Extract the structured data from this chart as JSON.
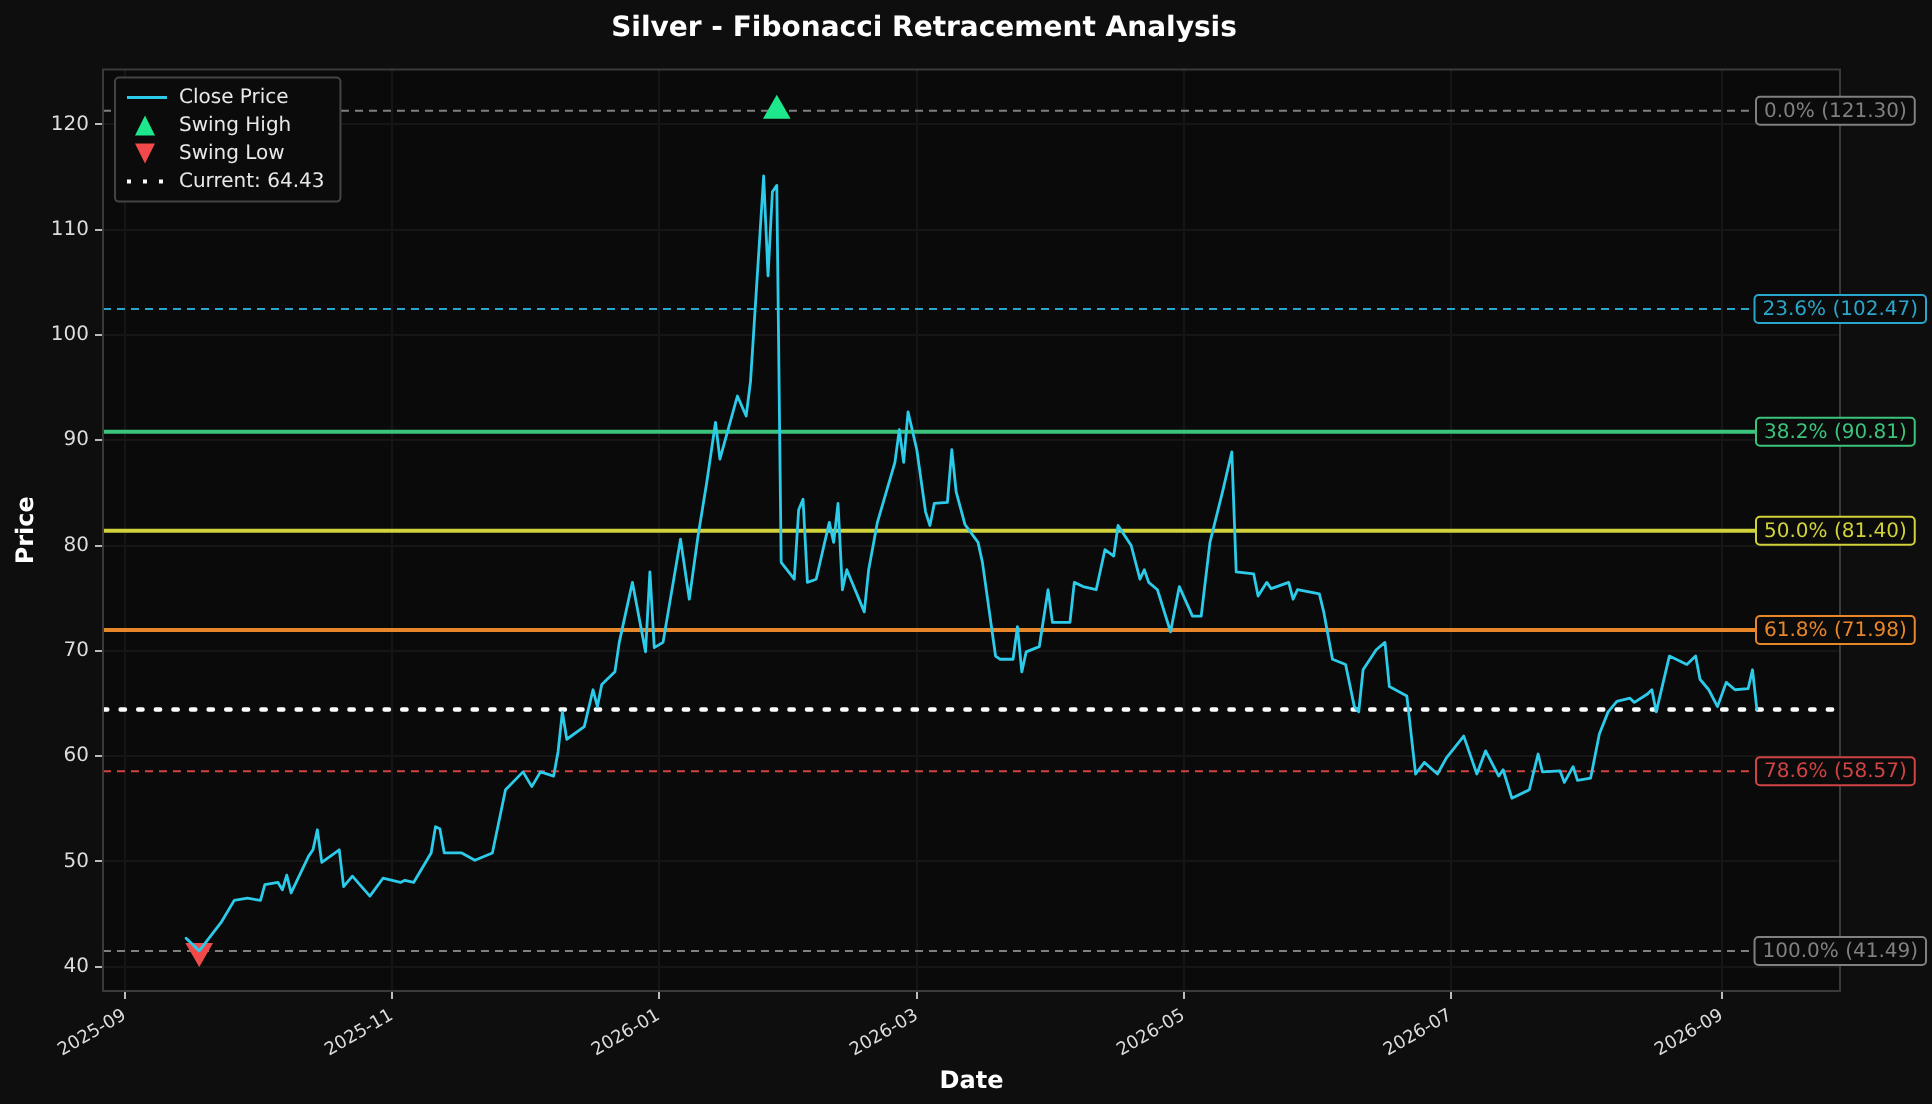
{
  "chart_data": {
    "type": "line",
    "title": "Silver - Fibonacci Retracement Analysis",
    "xlabel": "Date",
    "ylabel": "Price",
    "xlim": [
      "2025-08-27",
      "2026-09-28"
    ],
    "ylim": [
      37.7,
      125.2
    ],
    "xticks": [
      "2025-09",
      "2025-11",
      "2026-01",
      "2026-03",
      "2026-05",
      "2026-07",
      "2026-09"
    ],
    "yticks": [
      40,
      50,
      60,
      70,
      80,
      90,
      100,
      110,
      120
    ],
    "grid": true,
    "legend": "top left",
    "series": [
      {
        "name": "Close Price",
        "type": "line",
        "color": "#2ccbea",
        "line_style": "solid",
        "marker": "none",
        "x": [
          "2025-09-15",
          "2025-09-18",
          "2025-09-23",
          "2025-09-26",
          "2025-09-29",
          "2025-10-02",
          "2025-10-03",
          "2025-10-06",
          "2025-10-07",
          "2025-10-08",
          "2025-10-09",
          "2025-10-13",
          "2025-10-14",
          "2025-10-15",
          "2025-10-16",
          "2025-10-20",
          "2025-10-21",
          "2025-10-23",
          "2025-10-27",
          "2025-10-30",
          "2025-11-03",
          "2025-11-04",
          "2025-11-06",
          "2025-11-10",
          "2025-11-11",
          "2025-11-12",
          "2025-11-13",
          "2025-11-17",
          "2025-11-20",
          "2025-11-24",
          "2025-11-27",
          "2025-12-01",
          "2025-12-03",
          "2025-12-05",
          "2025-12-08",
          "2025-12-09",
          "2025-12-10",
          "2025-12-11",
          "2025-12-15",
          "2025-12-17",
          "2025-12-18",
          "2025-12-19",
          "2025-12-22",
          "2025-12-23",
          "2025-12-26",
          "2025-12-29",
          "2025-12-30",
          "2025-12-31",
          "2026-01-02",
          "2026-01-06",
          "2026-01-08",
          "2026-01-10",
          "2026-01-12",
          "2026-01-14",
          "2026-01-15",
          "2026-01-19",
          "2026-01-21",
          "2026-01-22",
          "2026-01-25",
          "2026-01-26",
          "2026-01-27",
          "2026-01-28",
          "2026-01-29",
          "2026-02-01",
          "2026-02-02",
          "2026-02-03",
          "2026-02-04",
          "2026-02-06",
          "2026-02-09",
          "2026-02-10",
          "2026-02-11",
          "2026-02-12",
          "2026-02-13",
          "2026-02-17",
          "2026-02-18",
          "2026-02-20",
          "2026-02-24",
          "2026-02-25",
          "2026-02-26",
          "2026-02-27",
          "2026-03-01",
          "2026-03-03",
          "2026-03-04",
          "2026-03-05",
          "2026-03-08",
          "2026-03-09",
          "2026-03-10",
          "2026-03-12",
          "2026-03-15",
          "2026-03-16",
          "2026-03-19",
          "2026-03-20",
          "2026-03-23",
          "2026-03-24",
          "2026-03-25",
          "2026-03-26",
          "2026-03-29",
          "2026-03-31",
          "2026-04-01",
          "2026-04-05",
          "2026-04-06",
          "2026-04-08",
          "2026-04-11",
          "2026-04-13",
          "2026-04-15",
          "2026-04-16",
          "2026-04-19",
          "2026-04-21",
          "2026-04-22",
          "2026-04-23",
          "2026-04-25",
          "2026-04-28",
          "2026-04-30",
          "2026-05-03",
          "2026-05-05",
          "2026-05-07",
          "2026-05-10",
          "2026-05-12",
          "2026-05-13",
          "2026-05-17",
          "2026-05-18",
          "2026-05-20",
          "2026-05-21",
          "2026-05-25",
          "2026-05-26",
          "2026-05-27",
          "2026-06-01",
          "2026-06-02",
          "2026-06-04",
          "2026-06-07",
          "2026-06-09",
          "2026-06-10",
          "2026-06-11",
          "2026-06-14",
          "2026-06-16",
          "2026-06-17",
          "2026-06-21",
          "2026-06-23",
          "2026-06-25",
          "2026-06-28",
          "2026-06-30",
          "2026-07-04",
          "2026-07-07",
          "2026-07-09",
          "2026-07-12",
          "2026-07-13",
          "2026-07-15",
          "2026-07-19",
          "2026-07-21",
          "2026-07-22",
          "2026-07-26",
          "2026-07-27",
          "2026-07-29",
          "2026-07-30",
          "2026-08-02",
          "2026-08-04",
          "2026-08-06",
          "2026-08-08",
          "2026-08-11",
          "2026-08-12",
          "2026-08-15",
          "2026-08-16",
          "2026-08-17",
          "2026-08-20",
          "2026-08-24",
          "2026-08-26",
          "2026-08-27",
          "2026-08-29",
          "2026-08-31",
          "2026-09-02",
          "2026-09-04",
          "2026-09-07",
          "2026-09-08",
          "2026-09-09"
        ],
        "values": [
          42.7,
          41.5,
          44.2,
          46.3,
          46.5,
          46.3,
          47.8,
          48.0,
          47.3,
          48.7,
          47.0,
          50.5,
          51.1,
          53.0,
          49.9,
          51.1,
          47.6,
          48.6,
          46.7,
          48.4,
          48.0,
          48.2,
          48.0,
          50.8,
          53.3,
          53.1,
          50.8,
          50.8,
          50.1,
          50.8,
          56.8,
          58.5,
          57.1,
          58.5,
          58.1,
          60.4,
          64.2,
          61.6,
          62.8,
          66.3,
          64.7,
          66.8,
          68.0,
          70.8,
          76.5,
          69.9,
          77.5,
          70.3,
          70.8,
          80.6,
          74.9,
          80.9,
          86.0,
          91.7,
          88.2,
          94.2,
          92.3,
          95.6,
          115.1,
          105.6,
          113.6,
          114.2,
          78.4,
          76.8,
          83.4,
          84.4,
          76.5,
          76.8,
          82.2,
          80.3,
          84.0,
          75.8,
          77.7,
          73.7,
          77.7,
          82.2,
          87.9,
          91.0,
          87.9,
          92.7,
          89.1,
          83.2,
          81.9,
          84.0,
          84.1,
          89.1,
          85.1,
          82.0,
          80.3,
          78.4,
          69.5,
          69.2,
          69.2,
          72.3,
          68.0,
          69.9,
          70.4,
          75.8,
          72.7,
          72.7,
          76.5,
          76.1,
          75.8,
          79.6,
          79.0,
          81.9,
          80.0,
          76.8,
          77.7,
          76.5,
          75.8,
          71.8,
          76.1,
          73.3,
          73.3,
          80.3,
          85.3,
          88.9,
          77.5,
          77.3,
          75.2,
          76.5,
          75.9,
          76.5,
          74.9,
          75.8,
          75.4,
          73.7,
          69.2,
          68.7,
          64.7,
          64.2,
          68.2,
          70.1,
          70.8,
          66.6,
          65.7,
          58.3,
          59.4,
          58.3,
          59.8,
          61.9,
          58.3,
          60.5,
          58.1,
          58.7,
          56.0,
          56.8,
          60.2,
          58.5,
          58.6,
          57.5,
          59.0,
          57.7,
          57.9,
          62.1,
          64.2,
          65.2,
          65.5,
          65.1,
          65.9,
          66.3,
          64.2,
          69.5,
          68.7,
          69.5,
          67.3,
          66.3,
          64.7,
          67.0,
          66.3,
          66.4,
          68.2,
          64.43
        ]
      },
      {
        "name": "Swing High",
        "type": "scatter",
        "color": "#1ee88c",
        "marker": "triangle",
        "x": [
          "2026-01-28"
        ],
        "values": [
          121.3
        ]
      },
      {
        "name": "Swing Low",
        "type": "scatter",
        "color": "#f24a4a",
        "marker": "triangle",
        "x": [
          "2025-09-18"
        ],
        "values": [
          41.49
        ]
      },
      {
        "name": "Current: 64.43",
        "type": "line",
        "color": "#ffffff",
        "line_style": "dotted",
        "marker": "none",
        "x": [
          "2025-08-27",
          "2026-09-28"
        ],
        "values": [
          64.43,
          64.43
        ]
      }
    ],
    "ref_lines": [
      {
        "axis": "y",
        "value": 121.3,
        "label": "0.0% (121.30)",
        "color": "#808080",
        "line_style": "dashed"
      },
      {
        "axis": "y",
        "value": 102.47,
        "label": "23.6% (102.47)",
        "color": "#2aa6cc",
        "line_style": "dashed"
      },
      {
        "axis": "y",
        "value": 90.81,
        "label": "38.2% (90.81)",
        "color": "#3cc47c",
        "line_style": "solid"
      },
      {
        "axis": "y",
        "value": 81.4,
        "label": "50.0% (81.40)",
        "color": "#d2d23c",
        "line_style": "solid"
      },
      {
        "axis": "y",
        "value": 71.98,
        "label": "61.8% (71.98)",
        "color": "#e8862a",
        "line_style": "solid"
      },
      {
        "axis": "y",
        "value": 58.57,
        "label": "78.6% (58.57)",
        "color": "#d04444",
        "line_style": "dashed"
      },
      {
        "axis": "y",
        "value": 41.49,
        "label": "100.0% (41.49)",
        "color": "#808080",
        "line_style": "dashed"
      }
    ]
  }
}
